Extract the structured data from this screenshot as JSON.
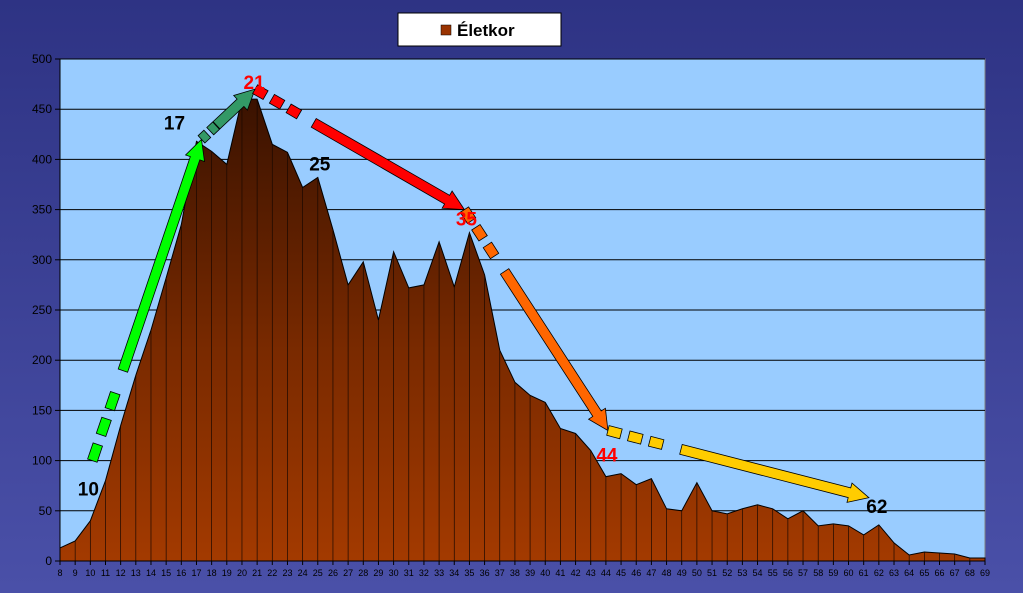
{
  "chart_data": {
    "type": "area",
    "legend": {
      "label": "Életkor",
      "placement": "top-center",
      "color": "#993300"
    },
    "x": [
      8,
      9,
      10,
      11,
      12,
      13,
      14,
      15,
      16,
      17,
      18,
      19,
      20,
      21,
      22,
      23,
      24,
      25,
      26,
      27,
      28,
      29,
      30,
      31,
      32,
      33,
      34,
      35,
      36,
      37,
      38,
      39,
      40,
      41,
      42,
      43,
      44,
      45,
      46,
      47,
      48,
      49,
      50,
      51,
      52,
      53,
      54,
      55,
      56,
      57,
      58,
      59,
      60,
      61,
      62,
      63,
      64,
      65,
      66,
      67,
      68,
      69
    ],
    "series": [
      {
        "name": "Életkor",
        "values": [
          13,
          20,
          40,
          80,
          135,
          185,
          230,
          282,
          335,
          418,
          408,
          395,
          460,
          460,
          415,
          407,
          372,
          382,
          330,
          275,
          298,
          240,
          308,
          272,
          275,
          318,
          273,
          327,
          285,
          210,
          178,
          165,
          158,
          132,
          127,
          110,
          84,
          87,
          76,
          82,
          52,
          50,
          78,
          50,
          47,
          52,
          56,
          52,
          42,
          50,
          35,
          37,
          35,
          26,
          36,
          18,
          6,
          9,
          8,
          7,
          3,
          3
        ]
      }
    ],
    "ylim": [
      0,
      500
    ],
    "yticks": [
      0,
      50,
      100,
      150,
      200,
      250,
      300,
      350,
      400,
      450,
      500
    ],
    "grid": true,
    "colors": {
      "frame_bg": "#3a4095",
      "plot_bg": "#99ccff",
      "area_fill": "#993300",
      "area_fill_dark": "#3a1200",
      "grid": "#000000",
      "axis_text": "#000000"
    },
    "annotations": [
      {
        "text": "10",
        "color": "#000000"
      },
      {
        "text": "17",
        "color": "#000000"
      },
      {
        "text": "21",
        "color": "#ff0000"
      },
      {
        "text": "25",
        "color": "#000000"
      },
      {
        "text": "35",
        "color": "#ff0000"
      },
      {
        "text": "44",
        "color": "#ff0000"
      },
      {
        "text": "62",
        "color": "#000000"
      }
    ],
    "arrows": [
      {
        "from": 10,
        "to": 17,
        "color": "#00ff00"
      },
      {
        "from": 17,
        "to": 21,
        "color": "#339966"
      },
      {
        "from": 21,
        "to": 35,
        "color": "#ff0000"
      },
      {
        "from": 35,
        "to": 44,
        "color": "#ff6600"
      },
      {
        "from": 44,
        "to": 62,
        "color": "#ffcc00"
      }
    ]
  }
}
